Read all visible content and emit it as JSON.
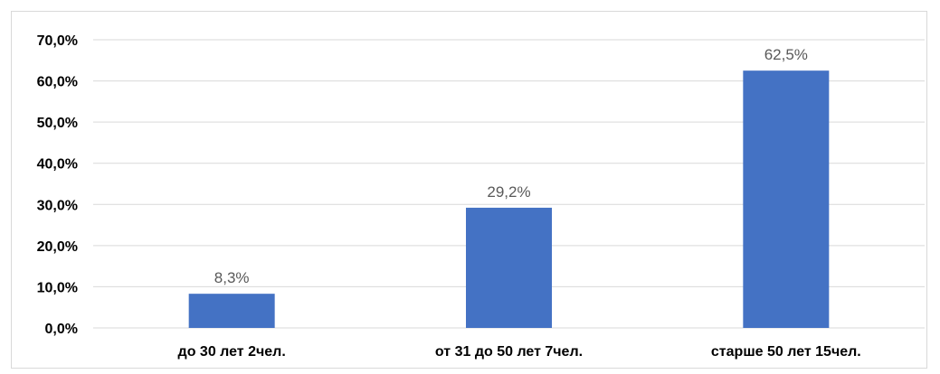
{
  "chart_data": {
    "type": "bar",
    "title": "",
    "xlabel": "",
    "ylabel": "",
    "categories": [
      "до 30 лет 2чел.",
      "от 31 до 50 лет 7чел.",
      "старше 50 лет 15чел."
    ],
    "values": [
      8.3,
      29.2,
      62.5
    ],
    "value_labels": [
      "8,3%",
      "29,2%",
      "62,5%"
    ],
    "ylim": [
      0,
      70
    ],
    "yticks": [
      0,
      10,
      20,
      30,
      40,
      50,
      60,
      70
    ],
    "ytick_labels": [
      "0,0%",
      "10,0%",
      "20,0%",
      "30,0%",
      "40,0%",
      "50,0%",
      "60,0%",
      "70,0%"
    ],
    "grid": true,
    "legend": "none",
    "bar_color": "#4472C4",
    "grid_color": "#d9d9d9",
    "data_label_color": "#595959"
  }
}
